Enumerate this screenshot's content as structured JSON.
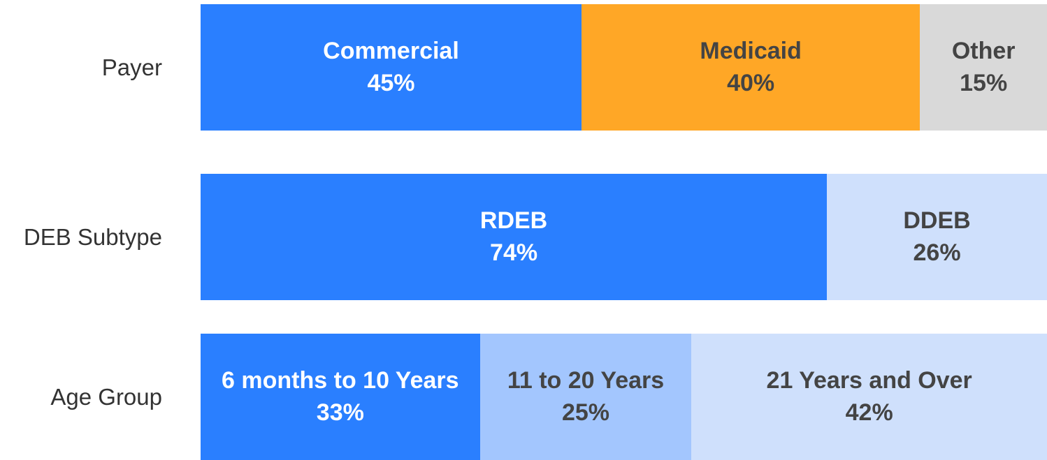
{
  "chart_data": {
    "type": "stacked_bar_100",
    "xlim": [
      0,
      100
    ],
    "categories": [
      "Payer",
      "DEB Subtype",
      "Age Group"
    ],
    "rows": [
      {
        "segments": [
          {
            "name": "Commercial",
            "value": 45,
            "value_label": "45%",
            "color": "#2a7fff",
            "text_color": "#ffffff"
          },
          {
            "name": "Medicaid",
            "value": 40,
            "value_label": "40%",
            "color": "#ffa726",
            "text_color": "#444444"
          },
          {
            "name": "Other",
            "value": 15,
            "value_label": "15%",
            "color": "#d9d9d9",
            "text_color": "#444444"
          }
        ]
      },
      {
        "segments": [
          {
            "name": "RDEB",
            "value": 74,
            "value_label": "74%",
            "color": "#2a7fff",
            "text_color": "#ffffff"
          },
          {
            "name": "DDEB",
            "value": 26,
            "value_label": "26%",
            "color": "#cfe0fc",
            "text_color": "#444444"
          }
        ]
      },
      {
        "segments": [
          {
            "name": "6 months to 10 Years",
            "value": 33,
            "value_label": "33%",
            "color": "#2a7fff",
            "text_color": "#ffffff"
          },
          {
            "name": "11 to 20 Years",
            "value": 25,
            "value_label": "25%",
            "color": "#a3c6fe",
            "text_color": "#444444"
          },
          {
            "name": "21 Years and Over",
            "value": 42,
            "value_label": "42%",
            "color": "#cfe0fc",
            "text_color": "#444444"
          }
        ]
      }
    ]
  }
}
